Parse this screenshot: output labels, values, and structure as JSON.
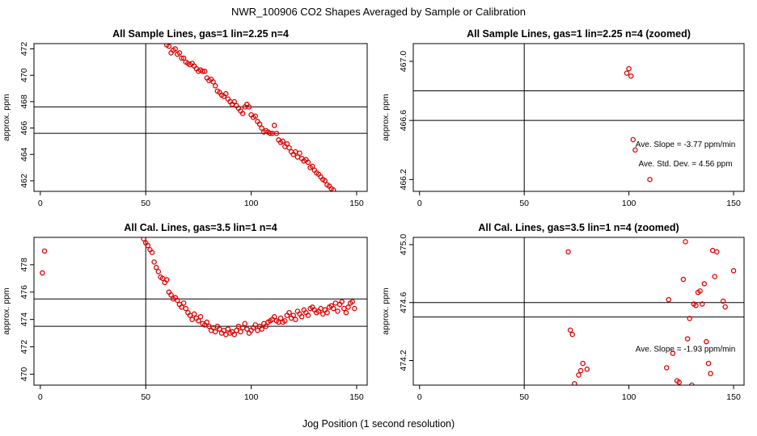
{
  "figure": {
    "title": "NWR_100906  CO2 Shapes Averaged by Sample or Calibration",
    "xlabel": "Jog Position (1 second resolution)",
    "point_color": "#e00000"
  },
  "chart_data": [
    {
      "type": "scatter",
      "title": "All Sample Lines, gas=1 lin=2.25 n=4",
      "ylabel": "approx. ppm",
      "xlim": [
        -3,
        155
      ],
      "ylim": [
        461.2,
        472.4
      ],
      "xticks": [
        0,
        50,
        100,
        150
      ],
      "yticks": [
        462,
        464,
        466,
        468,
        470,
        472
      ],
      "ytick_labels": [
        "462",
        "464",
        "466",
        "468",
        "470",
        "472"
      ],
      "vline": 50,
      "hlines": [
        467.6,
        465.6
      ],
      "annotations": [],
      "x": [
        60,
        61,
        62,
        63,
        64,
        65,
        66,
        67,
        68,
        69,
        70,
        71,
        72,
        73,
        74,
        75,
        76,
        77,
        78,
        79,
        80,
        81,
        82,
        83,
        84,
        85,
        86,
        87,
        88,
        89,
        90,
        91,
        92,
        93,
        94,
        95,
        96,
        97,
        98,
        99,
        100,
        101,
        102,
        103,
        104,
        105,
        106,
        107,
        108,
        109,
        110,
        111,
        112,
        113,
        114,
        115,
        116,
        117,
        118,
        119,
        120,
        121,
        122,
        123,
        124,
        125,
        126,
        127,
        128,
        129,
        130,
        131,
        132,
        133,
        134,
        135,
        136,
        137,
        138,
        139
      ],
      "y": [
        472.3,
        472.2,
        471.7,
        471.9,
        472.0,
        471.6,
        471.7,
        471.3,
        471.3,
        471.0,
        470.9,
        470.8,
        470.9,
        470.7,
        470.5,
        470.3,
        470.4,
        470.3,
        470.3,
        469.8,
        469.6,
        469.7,
        469.5,
        469.2,
        468.8,
        468.7,
        468.5,
        468.4,
        468.6,
        468.2,
        468.0,
        467.8,
        468.0,
        467.7,
        467.5,
        467.3,
        467.1,
        467.6,
        467.8,
        467.6,
        467.0,
        466.8,
        466.9,
        466.5,
        466.3,
        466.0,
        465.7,
        465.8,
        465.7,
        465.6,
        465.6,
        466.2,
        465.6,
        465.1,
        464.9,
        465.0,
        464.6,
        464.8,
        464.5,
        464.2,
        464.0,
        464.2,
        463.8,
        464.1,
        463.7,
        463.5,
        463.6,
        463.4,
        463.0,
        463.1,
        462.8,
        462.6,
        462.5,
        462.3,
        462.1,
        462.0,
        461.7,
        461.6,
        461.4,
        461.3
      ]
    },
    {
      "type": "scatter",
      "title": "All Sample Lines, gas=1 lin=2.25 n=4 (zoomed)",
      "ylabel": "approx. ppm",
      "xlim": [
        -3,
        155
      ],
      "ylim": [
        466.12,
        467.12
      ],
      "xticks": [
        0,
        50,
        100,
        150
      ],
      "yticks": [
        466.2,
        466.6,
        467.0
      ],
      "ytick_labels": [
        "466.2",
        "466.6",
        "467.0"
      ],
      "vline": 50,
      "hlines": [
        466.8,
        466.6
      ],
      "annotations": [
        {
          "text": "Ave. Slope =  -3.77  ppm/min",
          "x": 127,
          "y": 466.42
        },
        {
          "text": "Ave. Std. Dev. =  4.56  ppm",
          "x": 127,
          "y": 466.29
        }
      ],
      "x": [
        99,
        100,
        101,
        102,
        103,
        110
      ],
      "y": [
        466.92,
        466.95,
        466.9,
        466.47,
        466.4,
        466.2
      ]
    },
    {
      "type": "scatter",
      "title": "All Cal. Lines, gas=3.5 lin=1 n=4",
      "ylabel": "approx. ppm",
      "xlim": [
        -3,
        155
      ],
      "ylim": [
        469.2,
        480.0
      ],
      "xticks": [
        0,
        50,
        100,
        150
      ],
      "yticks": [
        470,
        472,
        474,
        476,
        478
      ],
      "ytick_labels": [
        "470",
        "472",
        "474",
        "476",
        "478"
      ],
      "vline": 50,
      "hlines": [
        475.5,
        473.5
      ],
      "annotations": [],
      "x": [
        1,
        2,
        48,
        49,
        50,
        51,
        52,
        53,
        54,
        55,
        56,
        57,
        58,
        59,
        60,
        61,
        62,
        63,
        64,
        65,
        66,
        67,
        68,
        69,
        70,
        71,
        72,
        73,
        74,
        75,
        76,
        77,
        78,
        79,
        80,
        81,
        82,
        83,
        84,
        85,
        86,
        87,
        88,
        89,
        90,
        91,
        92,
        93,
        94,
        95,
        96,
        97,
        98,
        99,
        100,
        101,
        102,
        103,
        104,
        105,
        106,
        107,
        108,
        109,
        110,
        111,
        112,
        113,
        114,
        115,
        116,
        117,
        118,
        119,
        120,
        121,
        122,
        123,
        124,
        125,
        126,
        127,
        128,
        129,
        130,
        131,
        132,
        133,
        134,
        135,
        136,
        137,
        138,
        139,
        140,
        141,
        142,
        143,
        144,
        145,
        146,
        147,
        148,
        149
      ],
      "y": [
        477.4,
        479.0,
        480.2,
        479.9,
        479.6,
        479.4,
        479.1,
        478.9,
        478.2,
        477.8,
        477.5,
        477.1,
        477.0,
        476.7,
        476.9,
        476.0,
        475.8,
        475.5,
        475.6,
        475.4,
        475.1,
        474.9,
        475.2,
        474.8,
        474.5,
        474.3,
        474.0,
        474.4,
        474.1,
        473.9,
        474.2,
        473.7,
        473.6,
        473.8,
        473.5,
        473.2,
        473.4,
        473.1,
        473.5,
        473.3,
        473.0,
        473.2,
        472.9,
        473.3,
        473.0,
        473.1,
        472.9,
        473.2,
        473.5,
        473.1,
        473.4,
        473.7,
        473.3,
        473.0,
        473.2,
        473.4,
        473.6,
        473.2,
        473.5,
        473.3,
        473.7,
        473.5,
        473.8,
        473.9,
        474.0,
        474.2,
        473.9,
        473.8,
        474.1,
        473.8,
        473.9,
        474.3,
        474.5,
        474.1,
        474.3,
        474.0,
        474.6,
        474.4,
        474.2,
        474.7,
        474.5,
        474.3,
        474.8,
        474.9,
        474.7,
        474.5,
        474.6,
        474.8,
        474.4,
        474.7,
        474.5,
        474.9,
        475.0,
        474.8,
        475.2,
        474.6,
        475.1,
        475.3,
        474.8,
        474.5,
        474.9,
        475.2,
        475.3,
        474.8
      ]
    },
    {
      "type": "scatter",
      "title": "All Cal. Lines, gas=3.5 lin=1 n=4 (zoomed)",
      "ylabel": "approx. ppm",
      "xlim": [
        -3,
        155
      ],
      "ylim": [
        474.03,
        475.05
      ],
      "xticks": [
        0,
        50,
        100,
        150
      ],
      "yticks": [
        474.2,
        474.6,
        475.0
      ],
      "ytick_labels": [
        "474.2",
        "474.6",
        "475.0"
      ],
      "vline": 50,
      "hlines": [
        474.6,
        474.5
      ],
      "annotations": [
        {
          "text": "Ave. Slope =  -1.93  ppm/min",
          "x": 127,
          "y": 474.26
        }
      ],
      "x": [
        71,
        72,
        73,
        74,
        76,
        77,
        78,
        80,
        118,
        119,
        121,
        123,
        124,
        126,
        127,
        128,
        129,
        130,
        131,
        132,
        133,
        134,
        135,
        136,
        137,
        138,
        139,
        140,
        141,
        142,
        145,
        146,
        150
      ],
      "y": [
        474.95,
        474.41,
        474.38,
        474.04,
        474.1,
        474.13,
        474.18,
        474.14,
        474.15,
        474.62,
        474.25,
        474.06,
        474.05,
        474.76,
        475.02,
        474.35,
        474.49,
        474.03,
        474.59,
        474.58,
        474.67,
        474.68,
        474.59,
        474.73,
        474.33,
        474.18,
        474.11,
        474.96,
        474.78,
        474.95,
        474.61,
        474.57,
        474.82
      ]
    }
  ]
}
